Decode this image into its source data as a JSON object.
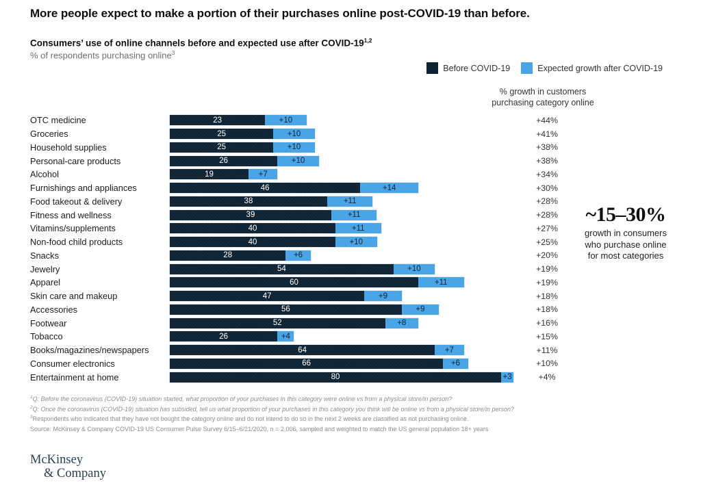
{
  "header": {
    "title": "More people expect to make a portion of their purchases online post-COVID-19 than before.",
    "subtitle": "Consumers’ use of online channels before and expected use after COVID-19",
    "subtitle_sup": "1,2",
    "unit_label": "% of respondents purchasing online",
    "unit_sup": "3"
  },
  "legend": [
    {
      "label": "Before COVID-19",
      "color": "#0d2233"
    },
    {
      "label": "Expected growth after COVID-19",
      "color": "#4aa5e6"
    }
  ],
  "growth_header": [
    "% growth in customers",
    "purchasing category online"
  ],
  "chart_data": {
    "type": "bar",
    "orientation": "horizontal",
    "stacked": true,
    "title": "Consumers’ use of online channels before and expected use after COVID-19",
    "value_unit": "% of respondents purchasing online",
    "xlim": [
      0,
      84
    ],
    "categories": [
      "OTC medicine",
      "Groceries",
      "Household supplies",
      "Personal-care products",
      "Alcohol",
      "Furnishings and appliances",
      "Food takeout & delivery",
      "Fitness and wellness",
      "Vitamins/supplements",
      "Non-food child products",
      "Snacks",
      "Jewelry",
      "Apparel",
      "Skin care and makeup",
      "Accessories",
      "Footwear",
      "Tobacco",
      "Books/magazines/newspapers",
      "Consumer electronics",
      "Entertainment at home"
    ],
    "series": [
      {
        "name": "Before COVID-19",
        "color": "#0d2233",
        "values": [
          23,
          25,
          25,
          26,
          19,
          46,
          38,
          39,
          40,
          40,
          28,
          54,
          60,
          47,
          56,
          52,
          26,
          64,
          66,
          80
        ]
      },
      {
        "name": "Expected growth after COVID-19",
        "color": "#4aa5e6",
        "values": [
          10,
          10,
          10,
          10,
          7,
          14,
          11,
          11,
          11,
          10,
          6,
          10,
          11,
          9,
          9,
          8,
          4,
          7,
          6,
          3
        ]
      }
    ],
    "growth_pct_labels": [
      "+44%",
      "+41%",
      "+38%",
      "+38%",
      "+34%",
      "+30%",
      "+28%",
      "+28%",
      "+27%",
      "+25%",
      "+20%",
      "+19%",
      "+19%",
      "+18%",
      "+18%",
      "+16%",
      "+15%",
      "+11%",
      "+10%",
      "+4%"
    ]
  },
  "annotation": {
    "headline": "~15–30%",
    "lines": [
      "growth in consumers",
      "who purchase online",
      "for most categories"
    ]
  },
  "footnotes": [
    {
      "sup": "1",
      "italic": true,
      "text": "Q: Before the coronavirus (COVID-19) situation started, what proportion of your purchases in this category were online vs from a physical store/in person?"
    },
    {
      "sup": "2",
      "italic": true,
      "text": "Q: Once the coronavirus (COVID-19) situation has subsided, tell us what proportion of your purchases in this category you think will be online vs from a physical store/in person?"
    },
    {
      "sup": "3",
      "italic": false,
      "text": "Respondents who indicated that they have not bought the category online and do not intend to do so in the next 2 weeks are classified as not purchasing online."
    },
    {
      "sup": "",
      "italic": false,
      "text": "Source: McKinsey & Company COVID-19 US Consumer Pulse Survey 6/15–6/21/2020, n = 2,006, sampled and weighted to match the US general population 18+ years"
    }
  ],
  "logo": {
    "line1": "McKinsey",
    "line2": "& Company"
  }
}
